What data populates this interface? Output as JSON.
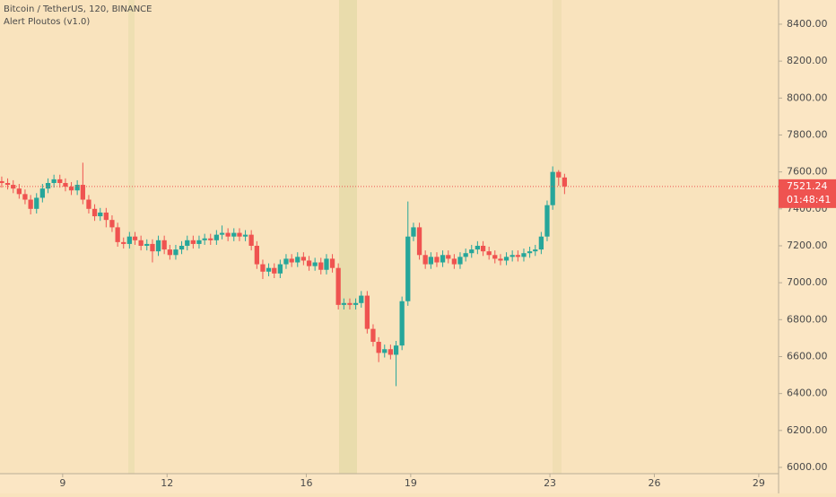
{
  "chart_data": {
    "type": "candlestick",
    "title": "Bitcoin / TetherUS, 120, BINANCE",
    "indicator": "Alert Ploutos (v1.0)",
    "countdown": "01:48:41",
    "up_color": "#26a69a",
    "down_color": "#ef5350",
    "x": [
      7.25,
      7.42,
      7.58,
      7.75,
      7.92,
      8.08,
      8.25,
      8.42,
      8.58,
      8.75,
      8.92,
      9.08,
      9.25,
      9.42,
      9.58,
      9.75,
      9.92,
      10.08,
      10.25,
      10.42,
      10.58,
      10.75,
      10.92,
      11.08,
      11.25,
      11.42,
      11.58,
      11.75,
      11.92,
      12.08,
      12.25,
      12.42,
      12.58,
      12.75,
      12.92,
      13.08,
      13.25,
      13.42,
      13.58,
      13.75,
      13.92,
      14.08,
      14.25,
      14.42,
      14.58,
      14.75,
      14.92,
      15.08,
      15.25,
      15.42,
      15.58,
      15.75,
      15.92,
      16.08,
      16.25,
      16.42,
      16.58,
      16.75,
      16.92,
      17.08,
      17.25,
      17.42,
      17.58,
      17.75,
      17.92,
      18.08,
      18.25,
      18.42,
      18.58,
      18.75,
      18.92,
      19.08,
      19.25,
      19.42,
      19.58,
      19.75,
      19.92,
      20.08,
      20.25,
      20.42,
      20.58,
      20.75,
      20.92,
      21.08,
      21.25,
      21.42,
      21.58,
      21.75,
      21.92,
      22.08,
      22.25,
      22.42,
      22.58,
      22.75,
      22.92,
      23.08,
      23.25,
      23.42
    ],
    "open": [
      7550,
      7540,
      7530,
      7510,
      7480,
      7450,
      7400,
      7460,
      7510,
      7540,
      7560,
      7540,
      7520,
      7500,
      7530,
      7450,
      7400,
      7360,
      7380,
      7340,
      7300,
      7220,
      7210,
      7250,
      7230,
      7200,
      7210,
      7170,
      7230,
      7180,
      7150,
      7180,
      7200,
      7230,
      7210,
      7230,
      7240,
      7230,
      7260,
      7270,
      7250,
      7270,
      7250,
      7260,
      7200,
      7100,
      7060,
      7080,
      7050,
      7100,
      7130,
      7110,
      7140,
      7120,
      7090,
      7110,
      7070,
      7130,
      7080,
      6880,
      6890,
      6880,
      6890,
      6930,
      6750,
      6680,
      6620,
      6640,
      6610,
      6660,
      6900,
      7250,
      7300,
      7150,
      7100,
      7140,
      7110,
      7150,
      7130,
      7100,
      7140,
      7160,
      7180,
      7200,
      7170,
      7150,
      7130,
      7120,
      7140,
      7150,
      7140,
      7160,
      7170,
      7180,
      7250,
      7420,
      7600,
      7570
    ],
    "high": [
      7575,
      7565,
      7555,
      7535,
      7505,
      7475,
      7485,
      7535,
      7565,
      7585,
      7585,
      7565,
      7545,
      7555,
      7650,
      7475,
      7425,
      7405,
      7405,
      7365,
      7325,
      7245,
      7275,
      7275,
      7255,
      7235,
      7235,
      7255,
      7255,
      7205,
      7205,
      7225,
      7255,
      7255,
      7255,
      7265,
      7265,
      7285,
      7310,
      7295,
      7295,
      7295,
      7285,
      7285,
      7225,
      7125,
      7105,
      7105,
      7125,
      7155,
      7155,
      7165,
      7165,
      7145,
      7135,
      7135,
      7155,
      7155,
      7105,
      6915,
      6915,
      6915,
      6955,
      6955,
      6775,
      6705,
      6665,
      6665,
      6685,
      6925,
      7440,
      7325,
      7325,
      7175,
      7165,
      7165,
      7175,
      7175,
      7155,
      7165,
      7185,
      7205,
      7225,
      7225,
      7195,
      7175,
      7155,
      7165,
      7175,
      7175,
      7185,
      7195,
      7205,
      7275,
      7445,
      7630,
      7610,
      7590
    ],
    "low": [
      7515,
      7505,
      7485,
      7455,
      7425,
      7370,
      7375,
      7435,
      7485,
      7515,
      7515,
      7495,
      7475,
      7475,
      7425,
      7375,
      7335,
      7335,
      7300,
      7275,
      7195,
      7185,
      7185,
      7205,
      7175,
      7175,
      7110,
      7145,
      7155,
      7125,
      7125,
      7155,
      7175,
      7185,
      7185,
      7205,
      7205,
      7205,
      7235,
      7225,
      7225,
      7225,
      7225,
      7175,
      7075,
      7020,
      7035,
      7025,
      7025,
      7075,
      7085,
      7085,
      7095,
      7065,
      7065,
      7045,
      7045,
      7055,
      6855,
      6855,
      6855,
      6855,
      6865,
      6725,
      6655,
      6570,
      6595,
      6585,
      6440,
      6635,
      6875,
      7225,
      7125,
      7075,
      7075,
      7085,
      7085,
      7105,
      7075,
      7075,
      7115,
      7135,
      7155,
      7145,
      7125,
      7105,
      7095,
      7095,
      7115,
      7115,
      7115,
      7135,
      7145,
      7155,
      7225,
      7395,
      7525,
      7480
    ],
    "close": [
      7540,
      7530,
      7510,
      7480,
      7450,
      7400,
      7460,
      7510,
      7540,
      7560,
      7540,
      7520,
      7500,
      7530,
      7450,
      7400,
      7360,
      7380,
      7340,
      7300,
      7220,
      7210,
      7250,
      7230,
      7200,
      7210,
      7170,
      7230,
      7180,
      7150,
      7180,
      7200,
      7230,
      7210,
      7230,
      7240,
      7230,
      7260,
      7270,
      7250,
      7270,
      7250,
      7260,
      7200,
      7100,
      7060,
      7080,
      7050,
      7100,
      7130,
      7110,
      7140,
      7120,
      7090,
      7110,
      7070,
      7130,
      7080,
      6880,
      6890,
      6880,
      6890,
      6930,
      6750,
      6680,
      6620,
      6640,
      6610,
      6660,
      6900,
      7250,
      7300,
      7150,
      7100,
      7140,
      7110,
      7150,
      7130,
      7100,
      7140,
      7160,
      7180,
      7200,
      7170,
      7150,
      7130,
      7120,
      7140,
      7150,
      7140,
      7160,
      7170,
      7180,
      7250,
      7420,
      7600,
      7570,
      7521.24
    ],
    "xlim": [
      7.2,
      29.57
    ],
    "xticks": [
      9,
      12,
      16,
      19,
      23,
      26,
      29
    ],
    "ylim": [
      5966,
      8531
    ],
    "yticks": [
      {
        "value": 6000,
        "label": "6000.00"
      },
      {
        "value": 6200,
        "label": "6200.00"
      },
      {
        "value": 6400,
        "label": "6400.00"
      },
      {
        "value": 6600,
        "label": "6600.00"
      },
      {
        "value": 6800,
        "label": "6800.00"
      },
      {
        "value": 7000,
        "label": "7000.00"
      },
      {
        "value": 7200,
        "label": "7200.00"
      },
      {
        "value": 7400,
        "label": "7400.00"
      },
      {
        "value": 7600,
        "label": "7600.00"
      },
      {
        "value": 7800,
        "label": "7800.00"
      },
      {
        "value": 8000,
        "label": "8000.00"
      },
      {
        "value": 8200,
        "label": "8200.00"
      },
      {
        "value": 8400,
        "label": "8400.00"
      }
    ]
  }
}
